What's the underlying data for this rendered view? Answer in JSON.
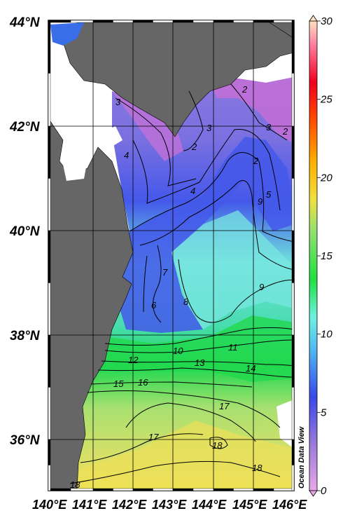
{
  "map": {
    "lat_labels": [
      "44°N",
      "42°N",
      "40°N",
      "38°N",
      "36°N"
    ],
    "lon_labels": [
      "140°E",
      "141°E",
      "142°E",
      "143°E",
      "144°E",
      "145°E",
      "146°E"
    ],
    "credit": "Ocean Data View"
  },
  "colorbar": {
    "min": 0,
    "max": 30,
    "ticks": [
      "0",
      "5",
      "10",
      "15",
      "20",
      "25",
      "30"
    ]
  },
  "contour_labels": [
    "2",
    "2",
    "2",
    "2",
    "3",
    "3",
    "3",
    "4",
    "4",
    "5",
    "9",
    "7",
    "6",
    "8",
    "9",
    "10",
    "11",
    "12",
    "13",
    "14",
    "15",
    "16",
    "17",
    "17",
    "18",
    "18",
    "18"
  ],
  "colors": {
    "land": "#666666",
    "cold": "#d27ad8",
    "blue": "#4a62e8",
    "cyan": "#6fe0d8",
    "green": "#2ed84a",
    "yellowgreen": "#c3e070",
    "yellow": "#f0e050"
  }
}
